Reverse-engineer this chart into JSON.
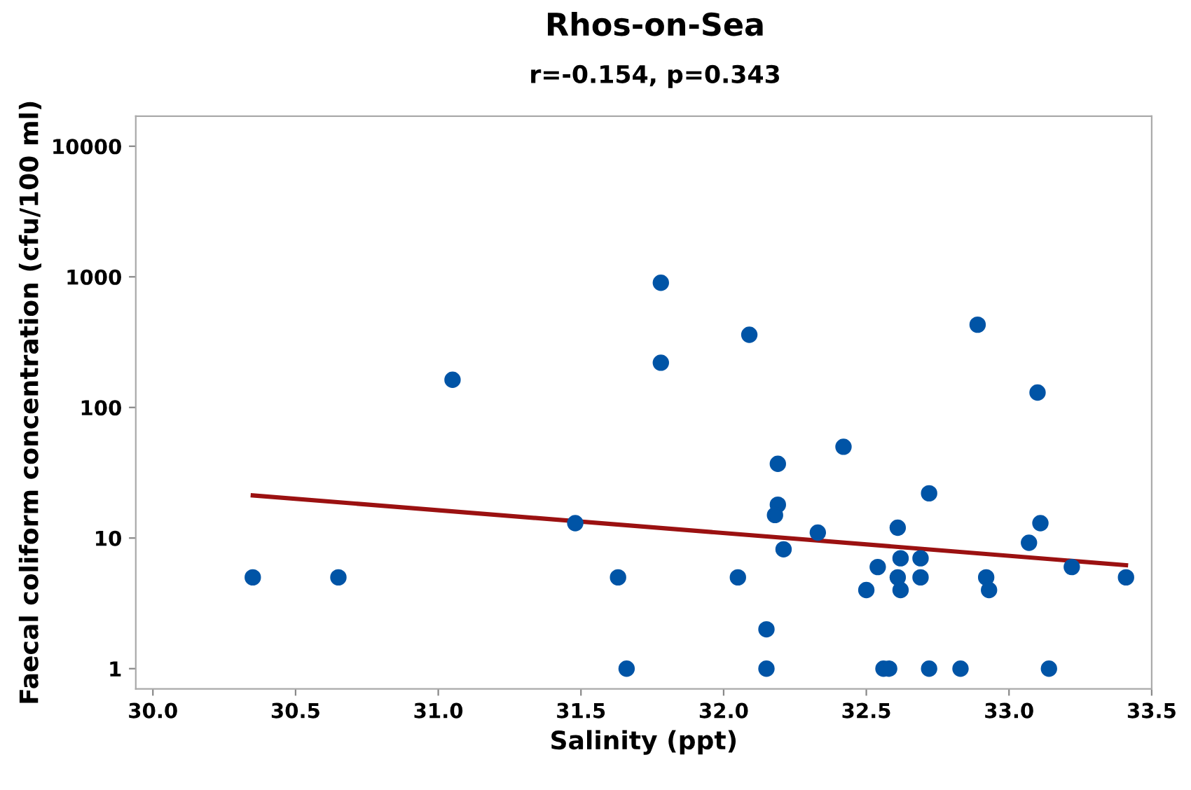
{
  "chart_data": {
    "type": "scatter",
    "title": "Rhos-on-Sea",
    "subtitle": "r=-0.154, p=0.343",
    "xlabel": "Salinity (ppt)",
    "ylabel": "Faecal coliform concentration (cfu/100 ml)",
    "log": "y",
    "grid": false,
    "xlim": [
      29.94,
      33.5
    ],
    "xticks": [
      {
        "value": 30,
        "label": "30.0"
      },
      30.5,
      {
        "value": 31,
        "label": "31.0"
      },
      31.5,
      {
        "value": 32,
        "label": "32.0"
      },
      32.5,
      {
        "value": 33,
        "label": "33.0"
      },
      33.5
    ],
    "ylim": [
      0.7,
      17000
    ],
    "yticks": [
      1,
      10,
      100,
      1000,
      10000
    ],
    "series": [
      {
        "marker": "circle",
        "color": "#0054a6",
        "x": [
          30.35,
          30.65,
          31.05,
          31.48,
          31.63,
          31.66,
          31.78,
          31.78,
          32.09,
          32.05,
          32.15,
          32.15,
          32.19,
          32.19,
          32.18,
          32.21,
          32.33,
          32.42,
          32.5,
          32.54,
          32.56,
          32.58,
          32.61,
          32.62,
          32.61,
          32.62,
          32.69,
          32.69,
          32.72,
          32.72,
          32.83,
          32.89,
          32.92,
          32.93,
          33.07,
          33.1,
          33.11,
          33.14,
          33.22,
          33.41
        ],
        "values": [
          5,
          5,
          163,
          13,
          5,
          1,
          900,
          220,
          360,
          5,
          2,
          1,
          37,
          18,
          15,
          8.2,
          11,
          50,
          4,
          6,
          1,
          1,
          12,
          7,
          5,
          4,
          7,
          5,
          22,
          1,
          1,
          430,
          5,
          4,
          9.2,
          130,
          13,
          1,
          6,
          5
        ]
      },
      {
        "type": "line",
        "color": "#9b1111",
        "x": [
          30.35,
          33.41
        ],
        "values": [
          21.2,
          6.2
        ]
      }
    ]
  }
}
